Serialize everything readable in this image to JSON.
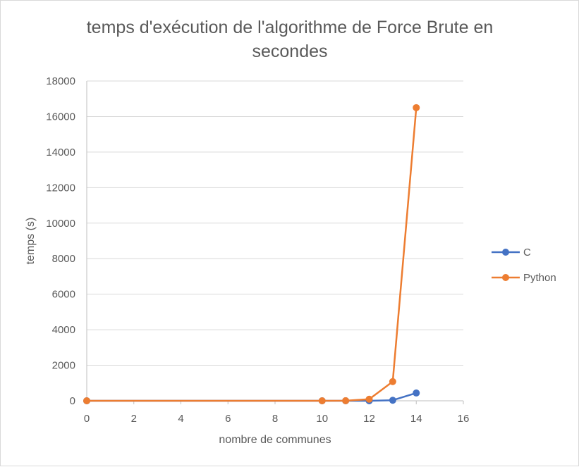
{
  "chart_data": {
    "type": "scatter",
    "title": "temps d'exécution de l'algorithme de Force Brute en secondes",
    "title_lines": [
      "temps d'exécution de l'algorithme de Force Brute en",
      "secondes"
    ],
    "xlabel": "nombre de communes",
    "ylabel": "temps (s)",
    "xlim": [
      0,
      16
    ],
    "ylim": [
      0,
      18000
    ],
    "xticks": [
      0,
      2,
      4,
      6,
      8,
      10,
      12,
      14,
      16
    ],
    "yticks": [
      0,
      2000,
      4000,
      6000,
      8000,
      10000,
      12000,
      14000,
      16000,
      18000
    ],
    "grid": true,
    "legend_position": "right",
    "markers": true,
    "lines": true,
    "series": [
      {
        "name": "C",
        "color": "#4472c4",
        "points": [
          [
            0,
            0
          ],
          [
            10,
            0
          ],
          [
            11,
            0
          ],
          [
            12,
            2
          ],
          [
            13,
            30
          ],
          [
            14,
            440
          ]
        ]
      },
      {
        "name": "Python",
        "color": "#ed7d31",
        "points": [
          [
            0,
            0
          ],
          [
            10,
            0
          ],
          [
            11,
            5
          ],
          [
            12,
            90
          ],
          [
            13,
            1080
          ],
          [
            14,
            16500
          ]
        ]
      }
    ]
  }
}
